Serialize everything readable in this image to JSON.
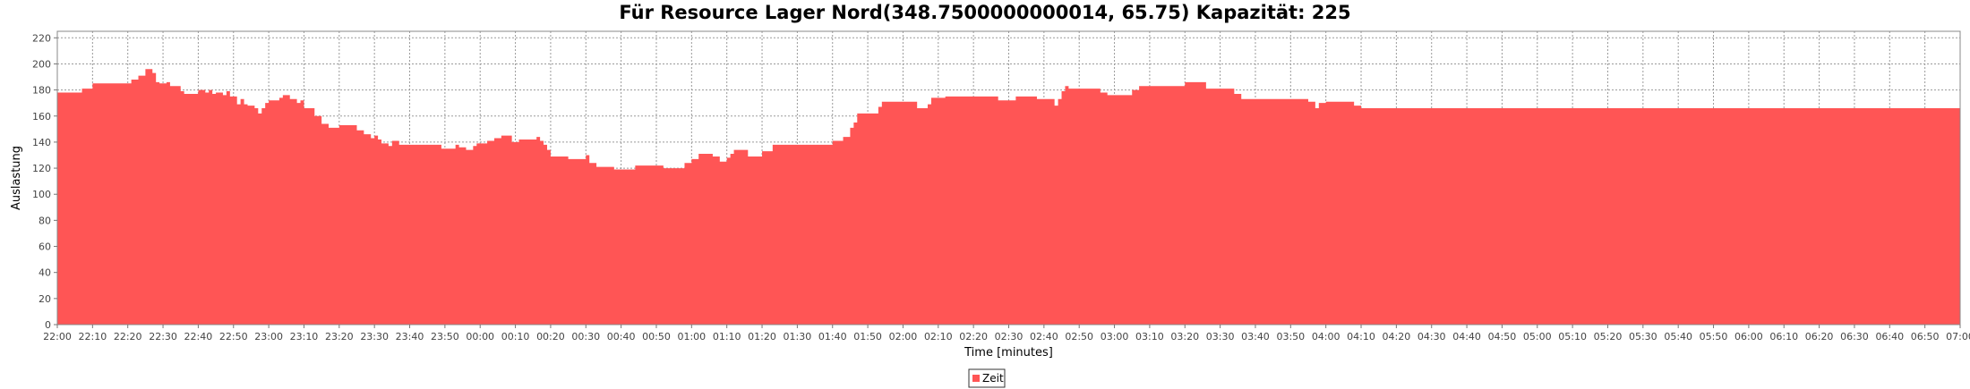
{
  "chart_data": {
    "type": "area",
    "title": "Für Resource Lager Nord(348.7500000000014, 65.75) Kapazität: 225",
    "xlabel": "Time [minutes]",
    "ylabel": "Auslastung",
    "ylim": [
      0,
      225
    ],
    "yticks": [
      0,
      20,
      40,
      60,
      80,
      100,
      120,
      140,
      160,
      180,
      200,
      220
    ],
    "xlim": [
      "22:00",
      "07:00"
    ],
    "xticks": [
      "22:00",
      "22:10",
      "22:20",
      "22:30",
      "22:40",
      "22:50",
      "23:00",
      "23:10",
      "23:20",
      "23:30",
      "23:40",
      "23:50",
      "00:00",
      "00:10",
      "00:20",
      "00:30",
      "00:40",
      "00:50",
      "01:00",
      "01:10",
      "01:20",
      "01:30",
      "01:40",
      "01:50",
      "02:00",
      "02:10",
      "02:20",
      "02:30",
      "02:40",
      "02:50",
      "03:00",
      "03:10",
      "03:20",
      "03:30",
      "03:40",
      "03:50",
      "04:00",
      "04:10",
      "04:20",
      "04:30",
      "04:40",
      "04:50",
      "05:00",
      "05:10",
      "05:20",
      "05:30",
      "05:40",
      "05:50",
      "06:00",
      "06:10",
      "06:20",
      "06:30",
      "06:40",
      "06:50",
      "07:00"
    ],
    "grid": true,
    "legend_position": "bottom-center",
    "series": [
      {
        "name": "Zeit",
        "color": "#ff5555",
        "points": [
          [
            "22:00",
            178
          ],
          [
            "22:07",
            181
          ],
          [
            "22:10",
            185
          ],
          [
            "22:21",
            188
          ],
          [
            "22:23",
            191
          ],
          [
            "22:25",
            196
          ],
          [
            "22:27",
            193
          ],
          [
            "22:28",
            186
          ],
          [
            "22:29",
            185
          ],
          [
            "22:31",
            186
          ],
          [
            "22:32",
            183
          ],
          [
            "22:35",
            179
          ],
          [
            "22:36",
            177
          ],
          [
            "22:40",
            180
          ],
          [
            "22:42",
            178
          ],
          [
            "22:43",
            180
          ],
          [
            "22:44",
            177
          ],
          [
            "22:45",
            178
          ],
          [
            "22:47",
            176
          ],
          [
            "22:48",
            179
          ],
          [
            "22:49",
            175
          ],
          [
            "22:51",
            169
          ],
          [
            "22:52",
            173
          ],
          [
            "22:53",
            169
          ],
          [
            "22:54",
            168
          ],
          [
            "22:56",
            166
          ],
          [
            "22:57",
            162
          ],
          [
            "22:58",
            166
          ],
          [
            "22:59",
            170
          ],
          [
            "23:00",
            172
          ],
          [
            "23:03",
            174
          ],
          [
            "23:04",
            176
          ],
          [
            "23:06",
            173
          ],
          [
            "23:08",
            170
          ],
          [
            "23:09",
            172
          ],
          [
            "23:10",
            166
          ],
          [
            "23:13",
            160
          ],
          [
            "23:15",
            154
          ],
          [
            "23:17",
            151
          ],
          [
            "23:20",
            153
          ],
          [
            "23:25",
            149
          ],
          [
            "23:27",
            146
          ],
          [
            "23:29",
            143
          ],
          [
            "23:30",
            145
          ],
          [
            "23:31",
            142
          ],
          [
            "23:32",
            139
          ],
          [
            "23:34",
            137
          ],
          [
            "23:35",
            141
          ],
          [
            "23:37",
            138
          ],
          [
            "23:49",
            135
          ],
          [
            "23:53",
            138
          ],
          [
            "23:54",
            136
          ],
          [
            "23:56",
            134
          ],
          [
            "23:58",
            137
          ],
          [
            "23:59",
            139
          ],
          [
            "00:02",
            141
          ],
          [
            "00:04",
            143
          ],
          [
            "00:06",
            145
          ],
          [
            "00:09",
            140
          ],
          [
            "00:11",
            142
          ],
          [
            "00:16",
            144
          ],
          [
            "00:17",
            141
          ],
          [
            "00:18",
            138
          ],
          [
            "00:19",
            134
          ],
          [
            "00:20",
            129
          ],
          [
            "00:25",
            127
          ],
          [
            "00:30",
            130
          ],
          [
            "00:31",
            124
          ],
          [
            "00:33",
            121
          ],
          [
            "00:38",
            119
          ],
          [
            "00:44",
            122
          ],
          [
            "00:52",
            120
          ],
          [
            "00:58",
            124
          ],
          [
            "01:00",
            127
          ],
          [
            "01:02",
            131
          ],
          [
            "01:06",
            129
          ],
          [
            "01:08",
            125
          ],
          [
            "01:10",
            128
          ],
          [
            "01:11",
            131
          ],
          [
            "01:12",
            134
          ],
          [
            "01:16",
            129
          ],
          [
            "01:20",
            133
          ],
          [
            "01:23",
            138
          ],
          [
            "01:40",
            141
          ],
          [
            "01:43",
            144
          ],
          [
            "01:45",
            151
          ],
          [
            "01:46",
            155
          ],
          [
            "01:47",
            162
          ],
          [
            "01:53",
            167
          ],
          [
            "01:54",
            171
          ],
          [
            "02:04",
            166
          ],
          [
            "02:07",
            169
          ],
          [
            "02:08",
            174
          ],
          [
            "02:12",
            175
          ],
          [
            "02:27",
            172
          ],
          [
            "02:32",
            175
          ],
          [
            "02:38",
            173
          ],
          [
            "02:43",
            168
          ],
          [
            "02:44",
            173
          ],
          [
            "02:45",
            179
          ],
          [
            "02:46",
            183
          ],
          [
            "02:47",
            181
          ],
          [
            "02:56",
            178
          ],
          [
            "02:58",
            176
          ],
          [
            "03:05",
            180
          ],
          [
            "03:07",
            183
          ],
          [
            "03:20",
            186
          ],
          [
            "03:26",
            181
          ],
          [
            "03:34",
            177
          ],
          [
            "03:36",
            173
          ],
          [
            "03:55",
            171
          ],
          [
            "03:57",
            166
          ],
          [
            "03:58",
            170
          ],
          [
            "04:00",
            171
          ],
          [
            "04:08",
            168
          ],
          [
            "04:10",
            166
          ],
          [
            "07:00",
            166
          ]
        ]
      }
    ]
  }
}
